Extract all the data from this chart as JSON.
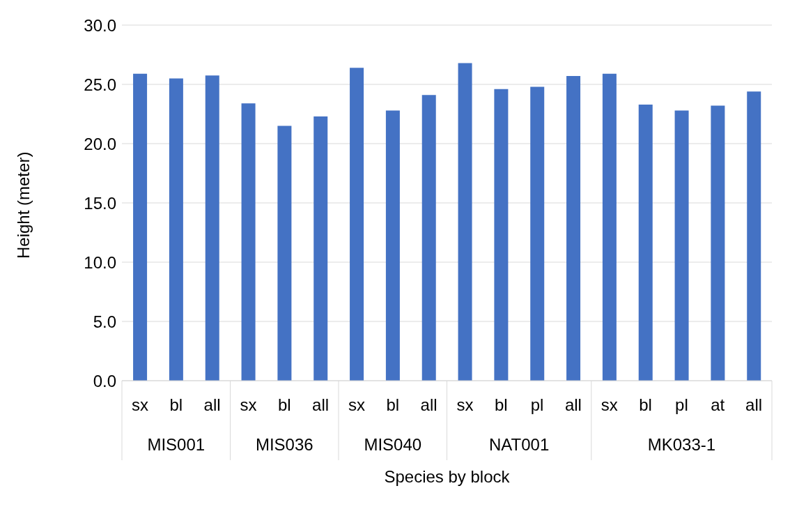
{
  "chart_data": {
    "type": "bar",
    "xlabel": "Species by block",
    "ylabel": "Height (meter)",
    "categories": [
      "sx",
      "bl",
      "all",
      "sx",
      "bl",
      "all",
      "sx",
      "bl",
      "all",
      "sx",
      "bl",
      "pl",
      "all",
      "sx",
      "bl",
      "pl",
      "at",
      "all"
    ],
    "values": [
      25.9,
      25.5,
      25.75,
      23.4,
      21.5,
      22.3,
      26.4,
      22.8,
      24.1,
      26.8,
      24.6,
      24.8,
      25.7,
      25.9,
      23.3,
      22.8,
      23.2,
      24.4
    ],
    "color": "#4472c4",
    "ylim": [
      0,
      30
    ],
    "yticks": [
      {
        "value": 0,
        "label": "0.0"
      },
      {
        "value": 5,
        "label": "5.0"
      },
      {
        "value": 10,
        "label": "10.0"
      },
      {
        "value": 15,
        "label": "15.0"
      },
      {
        "value": 20,
        "label": "20.0"
      },
      {
        "value": 25,
        "label": "25.0"
      },
      {
        "value": 30,
        "label": "30.0"
      }
    ],
    "grid": "y",
    "annotations": [
      "MIS001",
      "MIS036",
      "MIS040",
      "NAT001",
      "MK033-1"
    ]
  }
}
